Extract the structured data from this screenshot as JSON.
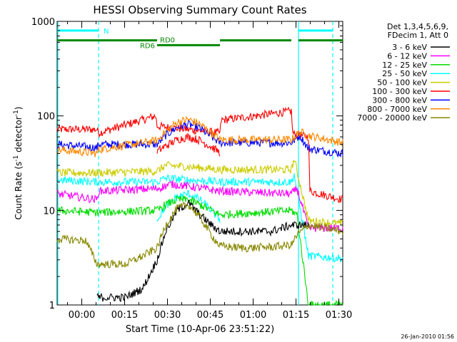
{
  "chart_data": {
    "type": "line",
    "title": "HESSI Observing Summary Count Rates",
    "xlabel": "Start Time (10-Apr-06 23:51:22)",
    "ylabel_main": "Count Rate (s",
    "ylabel_sup1": "-1",
    "ylabel_mid": " detector",
    "ylabel_sup2": "-1",
    "ylabel_close": ")",
    "y_scale": "log",
    "ylim": [
      1,
      1000
    ],
    "y_ticks": [
      {
        "v": 1,
        "label": "1"
      },
      {
        "v": 10,
        "label": "10"
      },
      {
        "v": 100,
        "label": "100"
      },
      {
        "v": 1000,
        "label": "1000"
      }
    ],
    "x_unit": "minutes after 23:51:22",
    "xlim": [
      0,
      100
    ],
    "x_ticks": [
      {
        "t": 8.63,
        "label": "00:00"
      },
      {
        "t": 23.63,
        "label": "00:15"
      },
      {
        "t": 38.63,
        "label": "00:30"
      },
      {
        "t": 53.63,
        "label": "00:45"
      },
      {
        "t": 68.63,
        "label": "01:00"
      },
      {
        "t": 83.63,
        "label": "01:15"
      },
      {
        "t": 98.63,
        "label": "01:30"
      }
    ],
    "header_lines": [
      "Det 1,3,4,5,6,9,",
      "FDecim 1, Att 0"
    ],
    "legend": [
      {
        "label": "3 - 6 keV",
        "color": "#000000"
      },
      {
        "label": "6 - 12 keV",
        "color": "#ff00ff"
      },
      {
        "label": "12 - 25 keV",
        "color": "#00dd00"
      },
      {
        "label": "25 - 50 keV",
        "color": "#00ffff"
      },
      {
        "label": "50 - 100 keV",
        "color": "#cccc00"
      },
      {
        "label": "100 - 300 keV",
        "color": "#ff0000"
      },
      {
        "label": "300 - 800 keV",
        "color": "#0000ff"
      },
      {
        "label": "800 - 7000 keV",
        "color": "#ff8800"
      },
      {
        "label": "7000 - 20000 keV",
        "color": "#888800"
      }
    ],
    "flags": [
      {
        "name": "N",
        "color": "#00ffff",
        "segments": [
          [
            0,
            14.5
          ],
          [
            84.5,
            96.5
          ]
        ],
        "level": 800
      },
      {
        "name": "RD0",
        "color": "#008800",
        "segments": [
          [
            0,
            35
          ],
          [
            57,
            82
          ],
          [
            84.5,
            100
          ]
        ],
        "level": 630
      },
      {
        "name": "RD6",
        "color": "#008800",
        "segments": [
          [
            35,
            57
          ]
        ],
        "level": 560
      }
    ],
    "flag_lines": [
      {
        "t": 0,
        "style": "solid"
      },
      {
        "t": 14.5,
        "style": "dashed"
      },
      {
        "t": 84.5,
        "style": "solid"
      },
      {
        "t": 96.5,
        "style": "dashed"
      }
    ],
    "series": [
      {
        "color": "#ff0000",
        "points": [
          [
            0,
            72
          ],
          [
            14,
            72
          ],
          [
            14.5,
            66
          ],
          [
            34.5,
            100
          ],
          [
            35,
            78
          ],
          [
            57,
            66
          ],
          [
            57.5,
            90
          ],
          [
            82,
            112
          ],
          [
            82.5,
            65
          ],
          [
            88,
            60
          ],
          [
            88.5,
            16
          ],
          [
            100,
            13
          ]
        ]
      },
      {
        "color": "#0000ff",
        "points": [
          [
            0,
            50
          ],
          [
            14,
            46
          ],
          [
            14.5,
            50
          ],
          [
            35,
            50
          ],
          [
            38,
            62
          ],
          [
            42,
            76
          ],
          [
            46,
            82
          ],
          [
            50,
            74
          ],
          [
            54,
            60
          ],
          [
            57,
            52
          ],
          [
            82,
            52
          ],
          [
            85,
            62
          ],
          [
            88,
            45
          ],
          [
            100,
            40
          ]
        ]
      },
      {
        "color": "#ff8800",
        "points": [
          [
            0,
            44
          ],
          [
            14,
            40
          ],
          [
            14.5,
            44
          ],
          [
            35,
            55
          ],
          [
            38,
            68
          ],
          [
            42,
            86
          ],
          [
            46,
            92
          ],
          [
            50,
            82
          ],
          [
            54,
            66
          ],
          [
            57,
            56
          ],
          [
            82,
            56
          ],
          [
            85,
            68
          ],
          [
            88,
            62
          ],
          [
            100,
            52
          ]
        ]
      },
      {
        "color": "#ff0000",
        "points": [
          [
            35,
            42
          ],
          [
            38,
            48
          ],
          [
            42,
            56
          ],
          [
            46,
            60
          ],
          [
            50,
            55
          ],
          [
            54,
            47
          ],
          [
            57,
            41
          ]
        ]
      },
      {
        "color": "#cccc00",
        "points": [
          [
            0,
            25
          ],
          [
            14,
            25
          ],
          [
            35,
            26
          ],
          [
            38,
            30
          ],
          [
            46,
            29
          ],
          [
            57,
            27
          ],
          [
            82,
            27
          ],
          [
            83,
            35
          ],
          [
            88,
            7.8
          ],
          [
            100,
            7.2
          ]
        ]
      },
      {
        "color": "#00ffff",
        "points": [
          [
            0,
            21
          ],
          [
            14,
            20
          ],
          [
            35,
            20
          ],
          [
            38,
            22
          ],
          [
            46,
            21
          ],
          [
            57,
            20
          ],
          [
            82,
            20
          ],
          [
            83,
            24
          ],
          [
            88,
            3.3
          ],
          [
            100,
            3.1
          ]
        ]
      },
      {
        "color": "#ff00ff",
        "points": [
          [
            0,
            15
          ],
          [
            14,
            13
          ],
          [
            14.5,
            16
          ],
          [
            35,
            17
          ],
          [
            40,
            19
          ],
          [
            46,
            18
          ],
          [
            57,
            16
          ],
          [
            82,
            15
          ],
          [
            84,
            17
          ],
          [
            88,
            6.5
          ],
          [
            100,
            6.5
          ]
        ]
      },
      {
        "color": "#00ffff",
        "points": [
          [
            35,
            8
          ],
          [
            38,
            11
          ],
          [
            42,
            14
          ],
          [
            46,
            15
          ],
          [
            50,
            13
          ],
          [
            54,
            10
          ],
          [
            57,
            8
          ]
        ]
      },
      {
        "color": "#00dd00",
        "points": [
          [
            0,
            10
          ],
          [
            14,
            9.5
          ],
          [
            35,
            10
          ],
          [
            38,
            11.5
          ],
          [
            42,
            13
          ],
          [
            46,
            13
          ],
          [
            50,
            11.5
          ],
          [
            54,
            10
          ],
          [
            57,
            9
          ],
          [
            82,
            10
          ],
          [
            84,
            9
          ],
          [
            88,
            1
          ],
          [
            100,
            1
          ]
        ]
      },
      {
        "color": "#000000",
        "points": [
          [
            14,
            1.2
          ],
          [
            20,
            1.2
          ],
          [
            24,
            1.2
          ],
          [
            30,
            1.5
          ],
          [
            35,
            3
          ],
          [
            38,
            6
          ],
          [
            42,
            10
          ],
          [
            46,
            12
          ],
          [
            50,
            9
          ],
          [
            54,
            7
          ],
          [
            57,
            6
          ],
          [
            66,
            6
          ],
          [
            75,
            6
          ],
          [
            82,
            7
          ],
          [
            88,
            7
          ]
        ]
      },
      {
        "color": "#888800",
        "points": [
          [
            0,
            5
          ],
          [
            10,
            4.8
          ],
          [
            14,
            2.7
          ],
          [
            24,
            2.7
          ],
          [
            30,
            3.3
          ],
          [
            35,
            4
          ],
          [
            38,
            7
          ],
          [
            42,
            10.5
          ],
          [
            46,
            11.5
          ],
          [
            50,
            8.5
          ],
          [
            54,
            5.5
          ],
          [
            57,
            4.2
          ],
          [
            66,
            4
          ],
          [
            75,
            4.1
          ],
          [
            82,
            4.3
          ],
          [
            84,
            5.5
          ],
          [
            88,
            7
          ],
          [
            100,
            6
          ]
        ]
      }
    ]
  },
  "timestamp": "26-Jan-2010 01:56"
}
